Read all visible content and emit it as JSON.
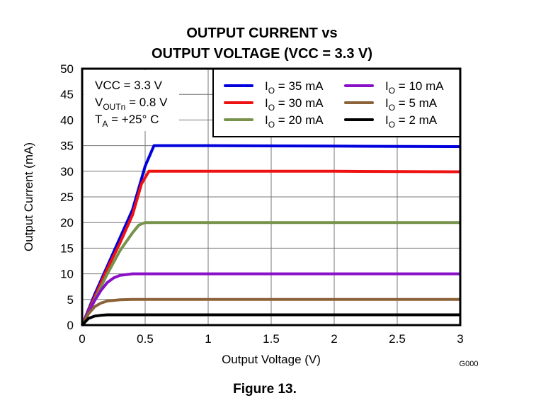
{
  "chart_data": {
    "type": "line",
    "title": [
      "OUTPUT CURRENT vs",
      "OUTPUT VOLTAGE (VCC = 3.3 V)"
    ],
    "xlabel": "Output Voltage (V)",
    "ylabel": "Output Current (mA)",
    "xlim": [
      0,
      3
    ],
    "ylim": [
      0,
      50
    ],
    "xticks": [
      "0",
      "0.5",
      "1",
      "1.5",
      "2",
      "2.5",
      "3"
    ],
    "xtick_values": [
      0,
      0.5,
      1,
      1.5,
      2,
      2.5,
      3
    ],
    "yticks": [
      "0",
      "5",
      "10",
      "15",
      "20",
      "25",
      "30",
      "35",
      "40",
      "45",
      "50"
    ],
    "ytick_values": [
      0,
      5,
      10,
      15,
      20,
      25,
      30,
      35,
      40,
      45,
      50
    ],
    "grid": true,
    "legend_placement": "top-right",
    "annotation": [
      {
        "main": "VCC = 3.3 V",
        "sub": "",
        "rest": ""
      },
      {
        "main": "V",
        "sub": "OUTn",
        "rest": " = 0.8 V"
      },
      {
        "main": "T",
        "sub": "A",
        "rest": " = +25° C"
      }
    ],
    "series": [
      {
        "name": "IO = 35 mA",
        "label_main": "I",
        "label_sub": "O",
        "label_rest": " = 35 mA",
        "color": "#0000dd",
        "x": [
          0,
          0.1,
          0.2,
          0.3,
          0.4,
          0.5,
          0.57,
          1,
          2,
          3
        ],
        "y": [
          0,
          6,
          11.5,
          17,
          22.5,
          31,
          35,
          35,
          34.9,
          34.8
        ]
      },
      {
        "name": "IO = 30 mA",
        "label_main": "I",
        "label_sub": "O",
        "label_rest": " = 30 mA",
        "color": "#ee1111",
        "x": [
          0,
          0.1,
          0.2,
          0.3,
          0.4,
          0.47,
          0.53,
          1,
          2,
          3
        ],
        "y": [
          0,
          5.5,
          11,
          16,
          21.5,
          27.5,
          30,
          30,
          30,
          29.9
        ]
      },
      {
        "name": "IO = 20 mA",
        "label_main": "I",
        "label_sub": "O",
        "label_rest": " = 20 mA",
        "color": "#77924a",
        "x": [
          0,
          0.1,
          0.2,
          0.3,
          0.4,
          0.45,
          0.5,
          1,
          2,
          3
        ],
        "y": [
          0,
          5,
          10,
          14.5,
          18,
          19.5,
          20,
          20,
          20,
          20
        ]
      },
      {
        "name": "IO = 10 mA",
        "label_main": "I",
        "label_sub": "O",
        "label_rest": " = 10 mA",
        "color": "#8a10c8",
        "x": [
          0,
          0.05,
          0.1,
          0.15,
          0.2,
          0.25,
          0.3,
          0.4,
          1,
          3
        ],
        "y": [
          0,
          2.5,
          4.8,
          6.8,
          8.3,
          9.2,
          9.7,
          10,
          10,
          10
        ]
      },
      {
        "name": "IO = 5 mA",
        "label_main": "I",
        "label_sub": "O",
        "label_rest": " = 5 mA",
        "color": "#8c6239",
        "x": [
          0,
          0.05,
          0.1,
          0.15,
          0.2,
          0.3,
          0.4,
          1,
          3
        ],
        "y": [
          0,
          2.2,
          3.6,
          4.3,
          4.7,
          4.95,
          5,
          5,
          5
        ]
      },
      {
        "name": "IO = 2 mA",
        "label_main": "I",
        "label_sub": "O",
        "label_rest": " = 2 mA",
        "color": "#000000",
        "x": [
          0,
          0.05,
          0.1,
          0.15,
          0.2,
          0.3,
          1,
          3
        ],
        "y": [
          0,
          1.3,
          1.75,
          1.92,
          2,
          2,
          2,
          2
        ]
      }
    ]
  },
  "figure_code": "G000",
  "caption": "Figure 13."
}
